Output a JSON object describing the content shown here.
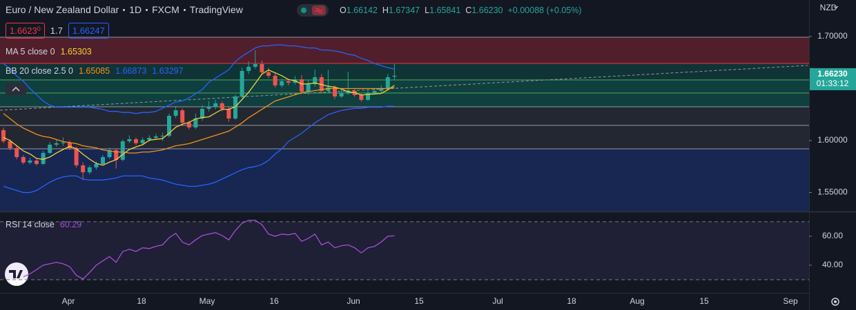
{
  "header": {
    "symbol": "Euro / New Zealand Dollar",
    "interval": "1D",
    "exchange": "FXCM",
    "source": "TradingView",
    "ohlc": [
      {
        "label": "O",
        "value": "1.66142"
      },
      {
        "label": "H",
        "value": "1.67347"
      },
      {
        "label": "L",
        "value": "1.65841"
      },
      {
        "label": "C",
        "value": "1.66230"
      }
    ],
    "change": "+0.00088 (+0.05%)"
  },
  "quote": {
    "sell_main": "1.6623",
    "sell_pipette": "0",
    "spread": "1.7",
    "buy": "1.66247"
  },
  "price_axis": {
    "currency": "NZD",
    "last_price": "1.66230",
    "countdown": "01:33:12"
  },
  "time_axis": {
    "labels": [
      "Apr",
      "18",
      "May",
      "16",
      "Jun",
      "15",
      "Jul",
      "18",
      "Aug",
      "15",
      "Sep"
    ]
  },
  "chart_data": [
    {
      "type": "candlestick",
      "up_color": "#26a69a",
      "down_color": "#ef5350",
      "ylim": [
        1.5318,
        1.7351
      ],
      "yticks": [
        {
          "value": 1.7,
          "label": "1.70000"
        },
        {
          "value": 1.6,
          "label": "1.60000"
        },
        {
          "value": 1.55,
          "label": "1.55000"
        }
      ],
      "open": [
        1.61,
        1.5993,
        1.5927,
        1.5841,
        1.5788,
        1.5808,
        1.5775,
        1.5881,
        1.596,
        1.5974,
        1.598,
        1.5927,
        1.5762,
        1.5695,
        1.5742,
        1.5775,
        1.5841,
        1.5907,
        1.5815,
        1.5993,
        1.6013,
        1.5974,
        1.6007,
        1.6026,
        1.604,
        1.6045,
        1.6238,
        1.6291,
        1.6172,
        1.6126,
        1.6212,
        1.6305,
        1.6325,
        1.6358,
        1.6305,
        1.6212,
        1.6424,
        1.6669,
        1.6709,
        1.6735,
        1.6656,
        1.6623,
        1.653,
        1.657,
        1.6556,
        1.6589,
        1.647,
        1.6543,
        1.6609,
        1.6477,
        1.651,
        1.6424,
        1.6457,
        1.6477,
        1.6437,
        1.6391,
        1.6457,
        1.6477,
        1.6503,
        1.66142
      ],
      "high": [
        1.6125,
        1.601,
        1.595,
        1.586,
        1.5835,
        1.583,
        1.59,
        1.5985,
        1.6005,
        1.603,
        1.6,
        1.594,
        1.579,
        1.576,
        1.58,
        1.586,
        1.593,
        1.5925,
        1.601,
        1.605,
        1.603,
        1.603,
        1.605,
        1.6065,
        1.6075,
        1.626,
        1.633,
        1.631,
        1.619,
        1.626,
        1.634,
        1.638,
        1.639,
        1.6375,
        1.633,
        1.644,
        1.67,
        1.676,
        1.6868,
        1.677,
        1.67,
        1.665,
        1.66,
        1.659,
        1.662,
        1.663,
        1.658,
        1.668,
        1.664,
        1.668,
        1.653,
        1.649,
        1.666,
        1.6495,
        1.645,
        1.648,
        1.65,
        1.653,
        1.664,
        1.67347
      ],
      "low": [
        1.5975,
        1.5905,
        1.582,
        1.577,
        1.577,
        1.576,
        1.5765,
        1.587,
        1.594,
        1.595,
        1.591,
        1.574,
        1.562,
        1.5675,
        1.572,
        1.576,
        1.5825,
        1.573,
        1.58,
        1.5975,
        1.5955,
        1.596,
        1.599,
        1.6005,
        1.5995,
        1.603,
        1.6215,
        1.615,
        1.6105,
        1.611,
        1.619,
        1.628,
        1.63,
        1.628,
        1.618,
        1.62,
        1.641,
        1.664,
        1.669,
        1.663,
        1.66,
        1.651,
        1.651,
        1.653,
        1.654,
        1.645,
        1.644,
        1.652,
        1.6455,
        1.646,
        1.64,
        1.641,
        1.644,
        1.642,
        1.6375,
        1.638,
        1.644,
        1.646,
        1.649,
        1.65841
      ],
      "close": [
        1.5993,
        1.5927,
        1.5841,
        1.5788,
        1.5808,
        1.5775,
        1.5881,
        1.596,
        1.5974,
        1.598,
        1.5927,
        1.5762,
        1.5695,
        1.5742,
        1.5775,
        1.5841,
        1.5907,
        1.5815,
        1.5993,
        1.6013,
        1.5974,
        1.6007,
        1.6026,
        1.604,
        1.6045,
        1.6238,
        1.6291,
        1.6172,
        1.6126,
        1.6212,
        1.6305,
        1.6325,
        1.6358,
        1.6305,
        1.6212,
        1.6424,
        1.6669,
        1.6709,
        1.6735,
        1.6656,
        1.6623,
        1.653,
        1.657,
        1.6556,
        1.6589,
        1.647,
        1.6543,
        1.6609,
        1.6477,
        1.651,
        1.6424,
        1.6457,
        1.6477,
        1.6437,
        1.6391,
        1.6457,
        1.6477,
        1.6503,
        1.6609,
        1.6623
      ],
      "series": [
        {
          "name": "MA 5 close 0",
          "color": "#f5d33a",
          "value_label": "1.65303",
          "values": [
            1.603,
            1.6,
            1.595,
            1.59,
            1.5871,
            1.5828,
            1.5819,
            1.5842,
            1.588,
            1.5914,
            1.5944,
            1.5921,
            1.5868,
            1.5821,
            1.578,
            1.5763,
            1.5792,
            1.5816,
            1.5866,
            1.5914,
            1.594,
            1.596,
            1.6003,
            1.6012,
            1.6018,
            1.6071,
            1.6128,
            1.6157,
            1.6174,
            1.6208,
            1.6221,
            1.6228,
            1.6265,
            1.6301,
            1.6301,
            1.6325,
            1.6394,
            1.6464,
            1.655,
            1.6639,
            1.6678,
            1.6651,
            1.6623,
            1.6587,
            1.6574,
            1.6543,
            1.6546,
            1.6553,
            1.6538,
            1.6522,
            1.6513,
            1.6495,
            1.6469,
            1.6461,
            1.6437,
            1.6444,
            1.6448,
            1.6453,
            1.6487,
            1.65303
          ]
        },
        {
          "name": "BB 20 close 2.5 0",
          "color": "#f7931a",
          "value_label": "1.65085",
          "values": [
            1.626,
            1.621,
            1.616,
            1.612,
            1.609,
            1.606,
            1.604,
            1.603,
            1.601,
            1.599,
            1.598,
            1.597,
            1.595,
            1.594,
            1.593,
            1.591,
            1.59,
            1.589,
            1.589,
            1.588,
            1.588,
            1.589,
            1.589,
            1.59,
            1.591,
            1.593,
            1.595,
            1.596,
            1.597,
            1.599,
            1.601,
            1.603,
            1.605,
            1.607,
            1.609,
            1.613,
            1.617,
            1.622,
            1.626,
            1.63,
            1.634,
            1.638,
            1.64,
            1.642,
            1.644,
            1.646,
            1.647,
            1.648,
            1.649,
            1.65,
            1.65,
            1.65,
            1.65,
            1.65,
            1.65,
            1.65,
            1.65,
            1.65,
            1.65,
            1.65085
          ]
        },
        {
          "color": "#2962ff",
          "value_label": "1.66873",
          "values": [
            1.674,
            1.669,
            1.662,
            1.657,
            1.65,
            1.644,
            1.638,
            1.634,
            1.632,
            1.632,
            1.632,
            1.632,
            1.632,
            1.632,
            1.631,
            1.63,
            1.628,
            1.628,
            1.627,
            1.627,
            1.626,
            1.627,
            1.627,
            1.628,
            1.631,
            1.634,
            1.637,
            1.638,
            1.641,
            1.645,
            1.649,
            1.656,
            1.66,
            1.664,
            1.668,
            1.676,
            1.681,
            1.685,
            1.689,
            1.691,
            1.691,
            1.692,
            1.692,
            1.691,
            1.691,
            1.69,
            1.689,
            1.689,
            1.687,
            1.687,
            1.686,
            1.685,
            1.683,
            1.682,
            1.679,
            1.677,
            1.674,
            1.672,
            1.67,
            1.66873
          ]
        },
        {
          "color": "#2962ff",
          "value_label": "1.63297",
          "values": [
            1.556,
            1.554,
            1.552,
            1.55,
            1.55,
            1.552,
            1.556,
            1.56,
            1.563,
            1.565,
            1.566,
            1.566,
            1.563,
            1.562,
            1.562,
            1.562,
            1.563,
            1.564,
            1.566,
            1.566,
            1.566,
            1.566,
            1.564,
            1.563,
            1.562,
            1.56,
            1.558,
            1.557,
            1.556,
            1.556,
            1.557,
            1.558,
            1.56,
            1.563,
            1.566,
            1.569,
            1.572,
            1.574,
            1.575,
            1.577,
            1.581,
            1.587,
            1.592,
            1.599,
            1.603,
            1.607,
            1.612,
            1.617,
            1.621,
            1.625,
            1.627,
            1.629,
            1.63,
            1.631,
            1.631,
            1.632,
            1.632,
            1.632,
            1.633,
            1.63297
          ]
        }
      ]
    },
    {
      "type": "line",
      "ylim": [
        20.95,
        77.1
      ],
      "yticks": [
        {
          "value": 60,
          "label": "60.00"
        },
        {
          "value": 40,
          "label": "40.00"
        }
      ],
      "band_levels": [
        70,
        30
      ],
      "band_color": "#7e57c2",
      "series": [
        {
          "name": "RSI 14 close",
          "color": "#a34fd6",
          "value_label": "60.29",
          "values": [
            null,
            null,
            null,
            32,
            34,
            37,
            40,
            41,
            42,
            41,
            39,
            33,
            30.5,
            35,
            40,
            43,
            46,
            42,
            49.5,
            51,
            49.5,
            52,
            51.5,
            53,
            54,
            59,
            62,
            56,
            54,
            57.5,
            60.5,
            61.5,
            62.5,
            60.5,
            57.5,
            64,
            69,
            71,
            71,
            68,
            61.5,
            60,
            61.5,
            61,
            62,
            56.5,
            58.5,
            61.5,
            54,
            56,
            52,
            53.5,
            54,
            52,
            48.5,
            52,
            53,
            56,
            60,
            60.29
          ]
        }
      ]
    }
  ]
}
